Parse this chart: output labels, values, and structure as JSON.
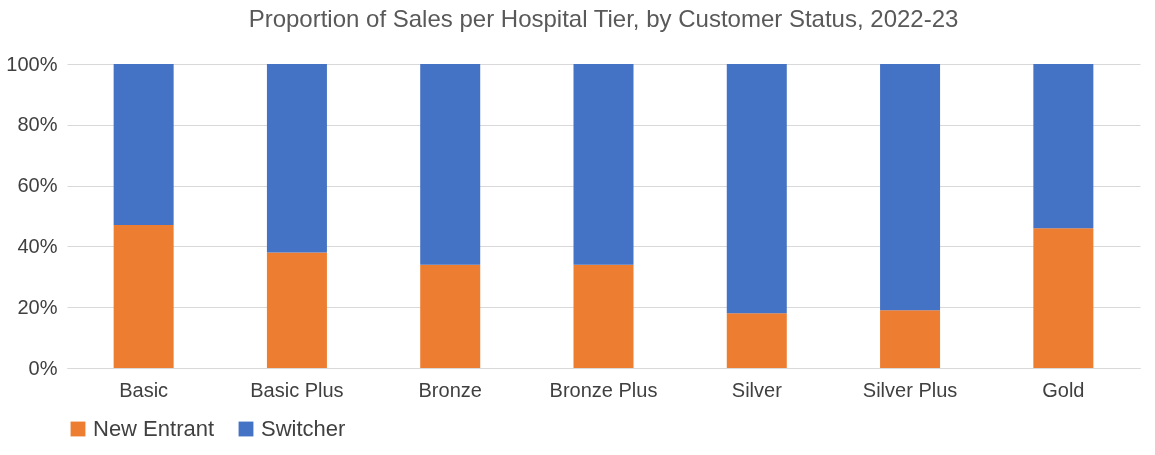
{
  "chart_data": {
    "type": "bar",
    "title": "Proportion of Sales per Hospital Tier, by Customer Status, 2022-23",
    "categories": [
      "Basic",
      "Basic Plus",
      "Bronze",
      "Bronze Plus",
      "Silver",
      "Silver Plus",
      "Gold"
    ],
    "stacked": true,
    "series": [
      {
        "name": "New Entrant",
        "color": "#ed7d31",
        "values": [
          47,
          38,
          34,
          34,
          18,
          19,
          46
        ]
      },
      {
        "name": "Switcher",
        "color": "#4472c4",
        "values": [
          53,
          62,
          66,
          66,
          82,
          81,
          54
        ]
      }
    ],
    "ylim": [
      0,
      100
    ],
    "yticks": [
      {
        "value": 0,
        "label": "0%"
      },
      {
        "value": 20,
        "label": "20%"
      },
      {
        "value": 40,
        "label": "40%"
      },
      {
        "value": 60,
        "label": "60%"
      },
      {
        "value": 80,
        "label": "80%"
      },
      {
        "value": 100,
        "label": "100%"
      }
    ],
    "grid": "y",
    "legend": "bottom"
  }
}
